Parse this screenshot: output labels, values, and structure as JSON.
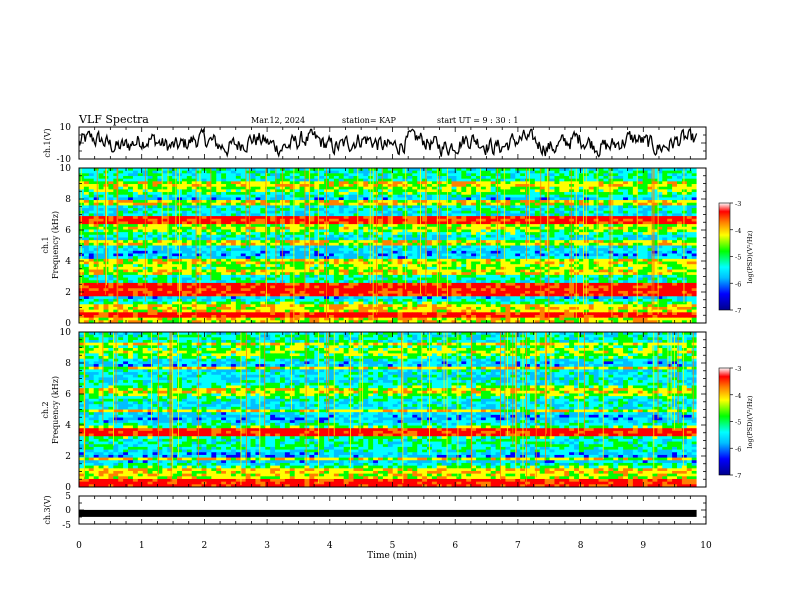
{
  "header": {
    "title": "VLF Spectra",
    "date": "Mar.12, 2024",
    "station": "station= KAP",
    "start_ut": "start UT =  9 : 30 : 1"
  },
  "chart_data": [
    {
      "type": "line",
      "name": "ch1-waveform",
      "ylabel": "ch.1(V)",
      "ylim": [
        -10,
        10
      ],
      "y_ticks": [
        "10",
        "-10"
      ],
      "xlim": [
        0,
        10
      ],
      "data_extent_min": 9.85,
      "baseline_v": 0,
      "amplitude_v": 7,
      "line_color": "#000000"
    },
    {
      "type": "heatmap",
      "name": "ch1-spectrogram",
      "ylabel": "ch.1\nFrequency (kHz)",
      "ylim": [
        0,
        10
      ],
      "y_ticks": [
        "10",
        "8",
        "6",
        "4",
        "2",
        "0"
      ],
      "xlim": [
        0,
        10
      ],
      "colorbar": {
        "label": "log(PSD)(V²/Hz)",
        "range": [
          -7,
          -3
        ],
        "ticks": [
          "-3",
          "-4",
          "-5",
          "-6",
          "-7"
        ],
        "colors": [
          "#00008b",
          "#0000ff",
          "#00bfff",
          "#00ffff",
          "#00ff00",
          "#ffff00",
          "#ff8000",
          "#ff0000",
          "#ffffff"
        ]
      },
      "bands": [
        {
          "freq_khz": 0.5,
          "level": "high"
        },
        {
          "freq_khz": 1.0,
          "level": "mid"
        },
        {
          "freq_khz": 2.0,
          "level": "high"
        },
        {
          "freq_khz": 2.4,
          "level": "high"
        },
        {
          "freq_khz": 3.3,
          "level": "mid"
        },
        {
          "freq_khz": 4.0,
          "level": "mid"
        },
        {
          "freq_khz": 5.2,
          "level": "mid"
        },
        {
          "freq_khz": 6.6,
          "level": "high"
        },
        {
          "freq_khz": 7.8,
          "level": "mid"
        },
        {
          "freq_khz": 9.0,
          "level": "mid"
        }
      ]
    },
    {
      "type": "heatmap",
      "name": "ch2-spectrogram",
      "ylabel": "ch.2\nFrequency (kHz)",
      "ylim": [
        0,
        10
      ],
      "y_ticks": [
        "10",
        "8",
        "6",
        "4",
        "2",
        "0"
      ],
      "xlim": [
        0,
        10
      ],
      "colorbar": {
        "label": "log(PSD)(V²/Hz)",
        "range": [
          -7,
          -3
        ],
        "ticks": [
          "-3",
          "-4",
          "-5",
          "-6",
          "-7"
        ],
        "colors": [
          "#00008b",
          "#0000ff",
          "#00bfff",
          "#00ffff",
          "#00ff00",
          "#ffff00",
          "#ff8000",
          "#ff0000",
          "#ffffff"
        ]
      },
      "bands": [
        {
          "freq_khz": 0.3,
          "level": "high"
        },
        {
          "freq_khz": 1.8,
          "level": "mid"
        },
        {
          "freq_khz": 3.5,
          "level": "high"
        },
        {
          "freq_khz": 4.9,
          "level": "mid"
        },
        {
          "freq_khz": 6.2,
          "level": "mid"
        },
        {
          "freq_khz": 7.7,
          "level": "mid"
        },
        {
          "freq_khz": 9.2,
          "level": "mid"
        }
      ]
    },
    {
      "type": "line",
      "name": "ch3-signal",
      "ylabel": "ch.3(V)",
      "ylim": [
        -5,
        5
      ],
      "y_ticks": [
        "5",
        "0",
        "-5"
      ],
      "xlim": [
        0,
        10
      ],
      "data_extent_min": 9.85,
      "level_v": -1.2,
      "line_color": "#000000"
    }
  ],
  "x_axis": {
    "label": "Time (min)",
    "ticks": [
      "0",
      "1",
      "2",
      "3",
      "4",
      "5",
      "6",
      "7",
      "8",
      "9",
      "10"
    ]
  }
}
